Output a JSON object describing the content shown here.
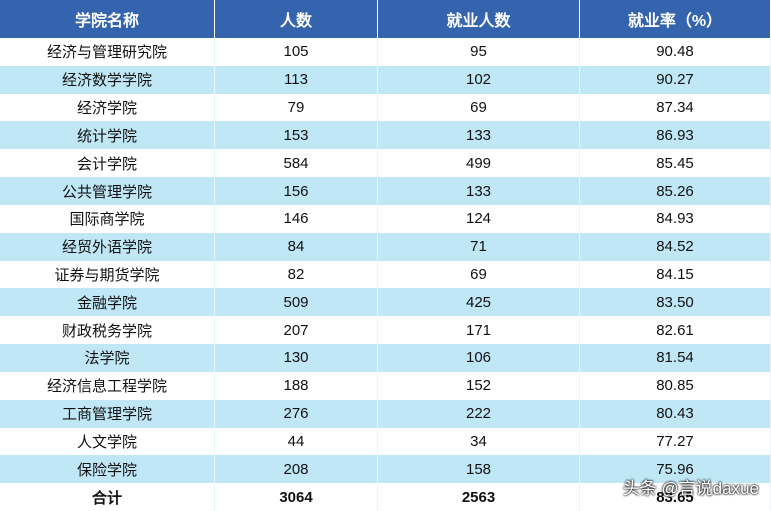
{
  "table": {
    "header": [
      "学院名称",
      "人数",
      "就业人数",
      "就业率（%）"
    ],
    "rows": [
      [
        "经济与管理研究院",
        "105",
        "95",
        "90.48"
      ],
      [
        "经济数学学院",
        "113",
        "102",
        "90.27"
      ],
      [
        "经济学院",
        "79",
        "69",
        "87.34"
      ],
      [
        "统计学院",
        "153",
        "133",
        "86.93"
      ],
      [
        "会计学院",
        "584",
        "499",
        "85.45"
      ],
      [
        "公共管理学院",
        "156",
        "133",
        "85.26"
      ],
      [
        "国际商学院",
        "146",
        "124",
        "84.93"
      ],
      [
        "经贸外语学院",
        "84",
        "71",
        "84.52"
      ],
      [
        "证券与期货学院",
        "82",
        "69",
        "84.15"
      ],
      [
        "金融学院",
        "509",
        "425",
        "83.50"
      ],
      [
        "财政税务学院",
        "207",
        "171",
        "82.61"
      ],
      [
        "法学院",
        "130",
        "106",
        "81.54"
      ],
      [
        "经济信息工程学院",
        "188",
        "152",
        "80.85"
      ],
      [
        "工商管理学院",
        "276",
        "222",
        "80.43"
      ],
      [
        "人文学院",
        "44",
        "34",
        "77.27"
      ],
      [
        "保险学院",
        "208",
        "158",
        "75.96"
      ]
    ],
    "total": [
      "合计",
      "3064",
      "2563",
      "83.65"
    ]
  },
  "watermark": "头条 @言说daxue"
}
